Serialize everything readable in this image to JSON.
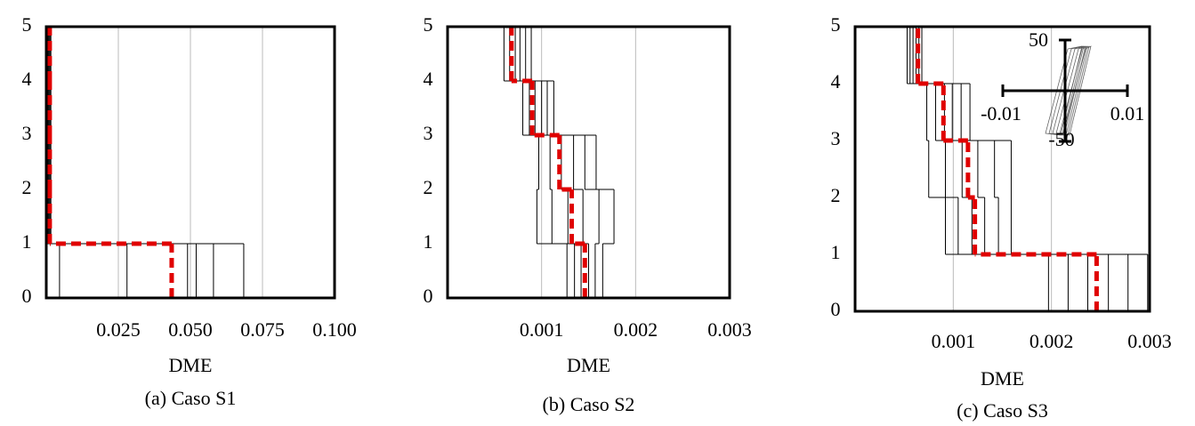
{
  "chart_data": [
    {
      "type": "line",
      "xlabel": "DME",
      "caption": "(a) Caso S1",
      "xlim": [
        0,
        0.1
      ],
      "xticks": [
        0.025,
        {
          "value": 0.05,
          "label": "0.050"
        },
        0.075,
        {
          "value": 0.1,
          "label": "0.100"
        }
      ],
      "ylim": [
        0,
        5
      ],
      "yticks": [
        0,
        1,
        2,
        3,
        4,
        5
      ],
      "grid": true,
      "series": [
        {
          "color": "#000000",
          "values": [
            0.0046,
            0.0003,
            0.0003,
            0.0003,
            0.0003
          ]
        },
        {
          "color": "#000000",
          "values": [
            0.028,
            0.0005,
            0.0005,
            0.0005,
            0.0005
          ]
        },
        {
          "color": "#000000",
          "values": [
            0.049,
            0.0008,
            0.0008,
            0.0008,
            0.0008
          ]
        },
        {
          "color": "#000000",
          "values": [
            0.052,
            0.001,
            0.001,
            0.001,
            0.001
          ]
        },
        {
          "color": "#000000",
          "values": [
            0.058,
            0.0013,
            0.0013,
            0.0013,
            0.0013
          ]
        },
        {
          "color": "#000000",
          "values": [
            0.0685,
            0.0016,
            0.0016,
            0.0016,
            0.0016
          ]
        },
        {
          "color": "#e00000",
          "values": [
            0.0435,
            0.0012,
            0.0012,
            0.0012,
            0.0012
          ]
        }
      ]
    },
    {
      "type": "line",
      "xlabel": "DME",
      "caption": "(b) Caso S2",
      "xlim": [
        0,
        0.003
      ],
      "xticks": [
        0.001,
        0.002,
        0.003
      ],
      "ylim": [
        0,
        5
      ],
      "yticks": [
        0,
        1,
        2,
        3,
        4,
        5
      ],
      "grid": true,
      "series": [
        {
          "color": "#000000",
          "values": [
            0.00127,
            0.00095,
            0.00097,
            0.0008,
            0.0006
          ]
        },
        {
          "color": "#000000",
          "values": [
            0.00135,
            0.00111,
            0.00109,
            0.00087,
            0.00066
          ]
        },
        {
          "color": "#000000",
          "values": [
            0.00142,
            0.00128,
            0.00121,
            0.00093,
            0.00072
          ]
        },
        {
          "color": "#000000",
          "values": [
            0.0015,
            0.00144,
            0.00134,
            0.001,
            0.00077
          ]
        },
        {
          "color": "#000000",
          "values": [
            0.00157,
            0.00161,
            0.00146,
            0.00106,
            0.00083
          ]
        },
        {
          "color": "#000000",
          "values": [
            0.00165,
            0.00177,
            0.00158,
            0.00113,
            0.00089
          ]
        },
        {
          "color": "#e00000",
          "values": [
            0.00146,
            0.00132,
            0.00119,
            0.0009,
            0.00068
          ]
        }
      ]
    },
    {
      "type": "line",
      "xlabel": "DME",
      "caption": "(c) Caso S3",
      "xlim": [
        0,
        0.003
      ],
      "xticks": [
        0.001,
        0.002,
        0.003
      ],
      "ylim": [
        0,
        5
      ],
      "yticks": [
        0,
        1,
        2,
        3,
        4,
        5
      ],
      "grid": true,
      "series": [
        {
          "color": "#000000",
          "values": [
            0.00197,
            0.00092,
            0.00075,
            0.00073,
            0.00053
          ]
        },
        {
          "color": "#000000",
          "values": [
            0.00217,
            0.00105,
            0.00092,
            0.00082,
            0.00056
          ]
        },
        {
          "color": "#000000",
          "values": [
            0.00237,
            0.00119,
            0.00109,
            0.00091,
            0.00059
          ]
        },
        {
          "color": "#000000",
          "values": [
            0.00258,
            0.00132,
            0.00125,
            0.00099,
            0.00062
          ]
        },
        {
          "color": "#000000",
          "values": [
            0.00278,
            0.00146,
            0.00142,
            0.00108,
            0.00065
          ]
        },
        {
          "color": "#000000",
          "values": [
            0.00298,
            0.00159,
            0.00159,
            0.00117,
            0.00068
          ]
        },
        {
          "color": "#e00000",
          "values": [
            0.00246,
            0.00122,
            0.00115,
            0.0009,
            0.00064
          ]
        }
      ],
      "inset": {
        "xlim": [
          -0.01,
          0.01
        ],
        "xticks": [
          -0.01,
          0.01
        ],
        "ylim": [
          -50,
          50
        ],
        "yticks": [
          50,
          -50
        ]
      }
    }
  ]
}
